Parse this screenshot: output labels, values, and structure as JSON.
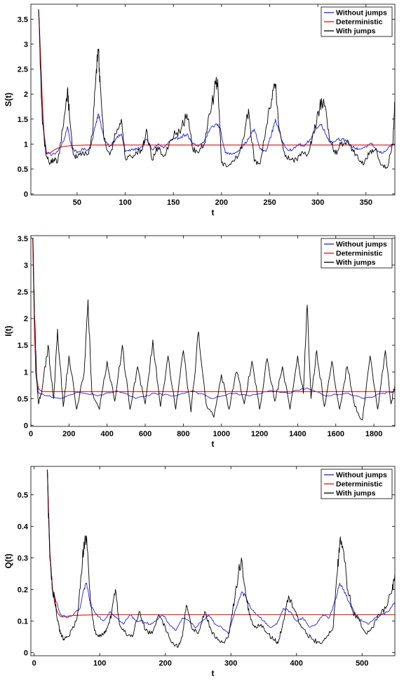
{
  "chart_data": [
    {
      "type": "line",
      "xlabel": "t",
      "ylabel": "S(t)",
      "xlim": [
        2,
        380
      ],
      "ylim": [
        -0.02,
        3.8
      ],
      "xticks": [
        50,
        100,
        150,
        200,
        250,
        300,
        350
      ],
      "yticks": [
        0,
        0.5,
        1,
        1.5,
        2,
        2.5,
        3,
        3.5
      ],
      "legend_position": "top-right",
      "colors": {
        "without_jumps": "#1f1fe0",
        "deterministic": "#e01010",
        "with_jumps": "#000000"
      },
      "series": [
        {
          "name": "Without jumps",
          "x": [
            10,
            14,
            18,
            24,
            30,
            36,
            40,
            44,
            50,
            56,
            62,
            66,
            70,
            72,
            74,
            78,
            84,
            90,
            96,
            100,
            106,
            112,
            118,
            122,
            128,
            134,
            140,
            146,
            152,
            158,
            164,
            170,
            176,
            182,
            188,
            194,
            198,
            204,
            210,
            216,
            222,
            228,
            234,
            240,
            246,
            252,
            256,
            262,
            268,
            274,
            280,
            286,
            292,
            298,
            304,
            308,
            314,
            320,
            326,
            332,
            338,
            344,
            350,
            356,
            362,
            368,
            374,
            380
          ],
          "y": [
            3.7,
            1.5,
            0.85,
            0.78,
            0.85,
            1.05,
            1.35,
            0.95,
            0.82,
            0.9,
            0.88,
            1.1,
            1.45,
            1.6,
            1.45,
            1.1,
            0.95,
            1.1,
            1.2,
            0.85,
            0.88,
            0.9,
            0.95,
            1.1,
            0.88,
            1.0,
            0.92,
            1.05,
            1.1,
            1.15,
            1.2,
            1.0,
            0.95,
            1.05,
            1.3,
            1.4,
            1.35,
            0.82,
            0.8,
            0.85,
            0.95,
            1.1,
            1.3,
            0.9,
            0.85,
            1.2,
            1.5,
            1.1,
            0.9,
            0.88,
            1.0,
            0.95,
            1.1,
            1.3,
            1.4,
            1.2,
            1.0,
            1.1,
            1.1,
            1.0,
            0.92,
            0.9,
            0.95,
            1.0,
            0.85,
            0.82,
            0.95,
            1.0
          ]
        },
        {
          "name": "Deterministic",
          "x": [
            10,
            12,
            14,
            16,
            18,
            22,
            26,
            30,
            36,
            44,
            60,
            100,
            200,
            300,
            380
          ],
          "y": [
            3.7,
            2.8,
            1.8,
            1.1,
            0.8,
            0.82,
            0.88,
            0.92,
            0.95,
            0.97,
            0.98,
            0.98,
            0.98,
            0.98,
            0.98
          ]
        },
        {
          "name": "With jumps",
          "x": [
            10,
            14,
            18,
            22,
            26,
            30,
            36,
            40,
            42,
            46,
            50,
            56,
            62,
            66,
            70,
            72,
            74,
            78,
            84,
            90,
            96,
            100,
            106,
            112,
            118,
            122,
            128,
            134,
            140,
            146,
            152,
            158,
            164,
            170,
            176,
            182,
            188,
            194,
            196,
            200,
            206,
            212,
            218,
            224,
            228,
            234,
            240,
            246,
            252,
            256,
            260,
            266,
            272,
            278,
            284,
            290,
            296,
            302,
            306,
            312,
            318,
            324,
            330,
            336,
            342,
            348,
            354,
            360,
            366,
            372,
            378,
            380
          ],
          "y": [
            3.7,
            1.4,
            0.75,
            0.62,
            0.7,
            0.65,
            1.4,
            2.1,
            1.6,
            0.8,
            0.72,
            0.85,
            0.8,
            1.2,
            2.5,
            2.9,
            2.2,
            1.1,
            0.78,
            1.2,
            1.5,
            0.72,
            0.75,
            0.82,
            0.9,
            1.3,
            0.68,
            0.95,
            0.75,
            1.05,
            1.2,
            1.3,
            1.6,
            0.9,
            0.82,
            1.0,
            1.6,
            2.2,
            2.3,
            0.62,
            0.55,
            0.65,
            0.8,
            1.2,
            1.7,
            0.65,
            0.6,
            1.3,
            1.9,
            2.2,
            1.3,
            0.75,
            0.7,
            0.68,
            0.85,
            0.8,
            1.25,
            1.75,
            1.9,
            1.1,
            0.8,
            1.0,
            1.05,
            0.9,
            0.7,
            0.6,
            0.85,
            0.9,
            0.58,
            0.52,
            1.0,
            1.85
          ]
        }
      ]
    },
    {
      "type": "line",
      "xlabel": "t",
      "ylabel": "I(t)",
      "xlim": [
        0,
        1910
      ],
      "ylim": [
        -0.02,
        3.55
      ],
      "xticks": [
        0,
        200,
        400,
        600,
        800,
        1000,
        1200,
        1400,
        1600,
        1800
      ],
      "yticks": [
        0,
        0.5,
        1,
        1.5,
        2,
        2.5,
        3,
        3.5
      ],
      "legend_position": "top-right",
      "colors": {
        "without_jumps": "#1f1fe0",
        "deterministic": "#e01010",
        "with_jumps": "#000000"
      },
      "series": [
        {
          "name": "Without jumps",
          "x": [
            10,
            25,
            40,
            80,
            150,
            250,
            350,
            450,
            550,
            650,
            750,
            850,
            950,
            1050,
            1150,
            1250,
            1350,
            1450,
            1550,
            1650,
            1750,
            1850,
            1910
          ],
          "y": [
            3.5,
            1.0,
            0.6,
            0.55,
            0.5,
            0.62,
            0.55,
            0.65,
            0.5,
            0.6,
            0.55,
            0.65,
            0.5,
            0.6,
            0.55,
            0.65,
            0.6,
            0.7,
            0.55,
            0.6,
            0.5,
            0.6,
            0.62
          ]
        },
        {
          "name": "Deterministic",
          "x": [
            10,
            20,
            30,
            40,
            60,
            100,
            300,
            600,
            1000,
            1400,
            1910
          ],
          "y": [
            3.5,
            1.6,
            0.9,
            0.68,
            0.63,
            0.63,
            0.63,
            0.63,
            0.63,
            0.63,
            0.63
          ]
        },
        {
          "name": "With jumps",
          "x": [
            10,
            20,
            30,
            40,
            60,
            90,
            120,
            140,
            170,
            200,
            240,
            280,
            300,
            320,
            360,
            400,
            440,
            480,
            520,
            560,
            600,
            640,
            680,
            720,
            760,
            800,
            840,
            880,
            920,
            960,
            1000,
            1040,
            1080,
            1120,
            1160,
            1200,
            1240,
            1280,
            1320,
            1360,
            1400,
            1430,
            1450,
            1470,
            1500,
            1540,
            1580,
            1620,
            1660,
            1700,
            1740,
            1780,
            1820,
            1860,
            1890,
            1910
          ],
          "y": [
            3.5,
            2.0,
            0.9,
            0.4,
            0.7,
            1.5,
            0.5,
            1.8,
            0.35,
            1.3,
            0.3,
            1.0,
            2.35,
            0.6,
            0.3,
            1.2,
            0.45,
            1.5,
            0.3,
            1.1,
            0.4,
            1.6,
            0.35,
            1.3,
            0.3,
            1.4,
            0.25,
            1.75,
            0.4,
            0.15,
            0.95,
            0.3,
            1.0,
            0.4,
            1.2,
            0.3,
            1.25,
            0.45,
            1.1,
            0.3,
            1.3,
            0.6,
            2.25,
            0.5,
            1.4,
            0.35,
            1.2,
            0.3,
            1.1,
            0.35,
            0.1,
            1.3,
            0.3,
            1.4,
            0.4,
            0.75
          ]
        }
      ]
    },
    {
      "type": "line",
      "xlabel": "t",
      "ylabel": "Q(t)",
      "xlim": [
        -5,
        550
      ],
      "ylim": [
        -0.01,
        0.59
      ],
      "xticks": [
        0,
        100,
        200,
        300,
        400,
        500
      ],
      "yticks": [
        0,
        0.1,
        0.2,
        0.3,
        0.4,
        0.5
      ],
      "legend_position": "top-right",
      "colors": {
        "without_jumps": "#1f1fe0",
        "deterministic": "#e01010",
        "with_jumps": "#000000"
      },
      "series": [
        {
          "name": "Without jumps",
          "x": [
            20,
            24,
            28,
            34,
            40,
            50,
            60,
            70,
            76,
            80,
            86,
            96,
            106,
            116,
            126,
            136,
            146,
            156,
            166,
            176,
            186,
            196,
            206,
            216,
            226,
            236,
            246,
            256,
            266,
            276,
            286,
            296,
            306,
            316,
            322,
            330,
            340,
            350,
            360,
            370,
            380,
            390,
            400,
            410,
            420,
            430,
            440,
            450,
            460,
            466,
            472,
            480,
            490,
            500,
            510,
            520,
            530,
            540,
            550
          ],
          "y": [
            0.58,
            0.3,
            0.2,
            0.16,
            0.12,
            0.11,
            0.12,
            0.14,
            0.2,
            0.22,
            0.15,
            0.12,
            0.1,
            0.13,
            0.11,
            0.09,
            0.12,
            0.1,
            0.1,
            0.09,
            0.1,
            0.12,
            0.09,
            0.07,
            0.11,
            0.1,
            0.08,
            0.1,
            0.12,
            0.09,
            0.08,
            0.06,
            0.13,
            0.19,
            0.18,
            0.14,
            0.12,
            0.1,
            0.08,
            0.09,
            0.14,
            0.13,
            0.1,
            0.11,
            0.08,
            0.09,
            0.12,
            0.11,
            0.17,
            0.22,
            0.2,
            0.16,
            0.12,
            0.1,
            0.09,
            0.11,
            0.12,
            0.13,
            0.16
          ]
        },
        {
          "name": "Deterministic",
          "x": [
            20,
            24,
            28,
            32,
            36,
            40,
            44,
            50,
            60,
            100,
            200,
            300,
            400,
            500,
            550
          ],
          "y": [
            0.58,
            0.32,
            0.2,
            0.15,
            0.125,
            0.115,
            0.113,
            0.115,
            0.118,
            0.12,
            0.12,
            0.12,
            0.12,
            0.12,
            0.12
          ]
        },
        {
          "name": "With jumps",
          "x": [
            20,
            24,
            28,
            32,
            36,
            40,
            46,
            52,
            60,
            66,
            72,
            76,
            80,
            86,
            92,
            100,
            106,
            112,
            118,
            124,
            130,
            140,
            150,
            160,
            170,
            180,
            190,
            200,
            210,
            220,
            226,
            232,
            240,
            250,
            260,
            270,
            280,
            290,
            296,
            302,
            308,
            316,
            322,
            328,
            336,
            346,
            356,
            366,
            372,
            380,
            388,
            396,
            406,
            416,
            426,
            436,
            446,
            456,
            462,
            466,
            472,
            478,
            486,
            496,
            506,
            516,
            526,
            536,
            546,
            550
          ],
          "y": [
            0.58,
            0.3,
            0.2,
            0.16,
            0.1,
            0.06,
            0.04,
            0.05,
            0.08,
            0.12,
            0.25,
            0.35,
            0.37,
            0.16,
            0.07,
            0.05,
            0.06,
            0.08,
            0.12,
            0.2,
            0.09,
            0.06,
            0.05,
            0.13,
            0.07,
            0.06,
            0.12,
            0.08,
            0.03,
            0.02,
            0.05,
            0.15,
            0.08,
            0.06,
            0.13,
            0.07,
            0.04,
            0.03,
            0.05,
            0.12,
            0.21,
            0.3,
            0.2,
            0.12,
            0.08,
            0.09,
            0.06,
            0.04,
            0.03,
            0.1,
            0.18,
            0.14,
            0.09,
            0.06,
            0.04,
            0.03,
            0.05,
            0.08,
            0.25,
            0.35,
            0.32,
            0.2,
            0.13,
            0.1,
            0.06,
            0.08,
            0.12,
            0.14,
            0.2,
            0.25
          ]
        }
      ]
    }
  ]
}
